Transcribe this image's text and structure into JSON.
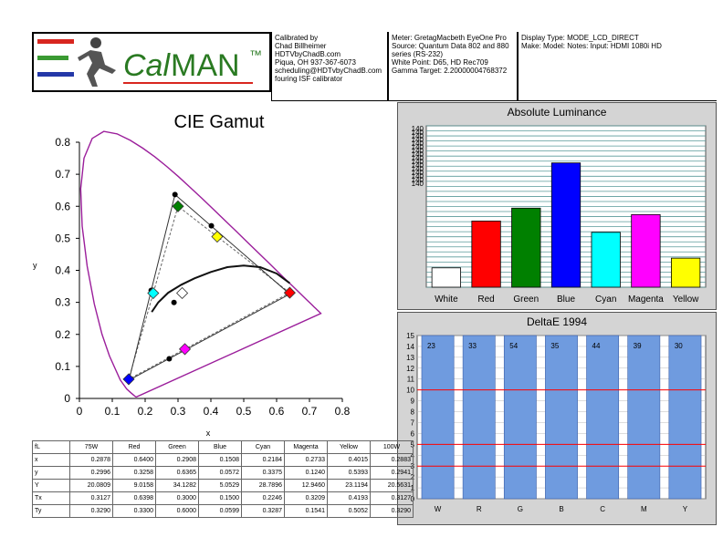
{
  "header": {
    "logo_text_cal": "Cal",
    "logo_text_man": "MAN",
    "logo_tm": "™",
    "calibrated_by": "Calibrated by\nChad Billheimer\nHDTVbyChadB.com\nPiqua, OH 937-367-6073\nscheduling@HDTvbyChadB.com\nfouring ISF calibrator",
    "meter_info": "Meter: GretagMacbeth EyeOne Pro\nSource: Quantum Data 802 and 880\nseries (RS-232)\nWhite Point: D65, HD Rec709\nGamma Target: 2.20000004768372",
    "display_info": "Display Type: MODE_LCD_DIRECT\nMake: Model: Notes: Input: HDMI 1080i HD",
    "colors": {
      "logo_red": "#d8261f",
      "logo_green": "#3a9a32",
      "logo_blue": "#2438a8",
      "logo_text": "#2a7a22"
    }
  },
  "chart_data": [
    {
      "type": "scatter",
      "title": "CIE Gamut",
      "xlabel": "x",
      "ylabel": "y",
      "xlim": [
        0,
        0.8
      ],
      "ylim": [
        0,
        0.8
      ],
      "xticks": [
        "0",
        "0.1",
        "0.2",
        "0.3",
        "0.4",
        "0.5",
        "0.6",
        "0.7",
        "0.8"
      ],
      "yticks": [
        "0",
        "0.1",
        "0.2",
        "0.3",
        "0.4",
        "0.5",
        "0.6",
        "0.7",
        "0.8"
      ],
      "target_points": [
        {
          "name": "R",
          "x": 0.64,
          "y": 0.33,
          "color": "#ff0000"
        },
        {
          "name": "G",
          "x": 0.3,
          "y": 0.6,
          "color": "#008000"
        },
        {
          "name": "B",
          "x": 0.15,
          "y": 0.06,
          "color": "#0000ff"
        },
        {
          "name": "C",
          "x": 0.2246,
          "y": 0.3287,
          "color": "#00ffff"
        },
        {
          "name": "M",
          "x": 0.3209,
          "y": 0.1541,
          "color": "#ff00ff"
        },
        {
          "name": "Y",
          "x": 0.4193,
          "y": 0.5052,
          "color": "#ffff00"
        },
        {
          "name": "W",
          "x": 0.3127,
          "y": 0.329,
          "color": "#ffffff"
        }
      ],
      "measured_points": [
        {
          "name": "R",
          "x": 0.64,
          "y": 0.3258
        },
        {
          "name": "G",
          "x": 0.2908,
          "y": 0.6365
        },
        {
          "name": "B",
          "x": 0.1508,
          "y": 0.0572
        },
        {
          "name": "C",
          "x": 0.2184,
          "y": 0.3375
        },
        {
          "name": "M",
          "x": 0.2733,
          "y": 0.124
        },
        {
          "name": "Y",
          "x": 0.4015,
          "y": 0.5393
        },
        {
          "name": "W",
          "x": 0.2878,
          "y": 0.2996
        }
      ],
      "colors": {
        "locus": "#9b1e9b",
        "triangle": "#555555",
        "curve": "#000000"
      }
    },
    {
      "type": "bar",
      "title": "Absolute Luminance",
      "categories": [
        "White",
        "Red",
        "Green",
        "Blue",
        "Cyan",
        "Magenta",
        "Yellow"
      ],
      "values": [
        0.12,
        0.41,
        0.49,
        0.77,
        0.34,
        0.45,
        0.18
      ],
      "value_note": "fraction of plot height",
      "colors": [
        "#ffffff",
        "#ff0000",
        "#008000",
        "#0000ff",
        "#00ffff",
        "#ff00ff",
        "#ffff00"
      ],
      "ytick_label": "140"
    },
    {
      "type": "bar",
      "title": "DeltaE 1994",
      "categories": [
        "W",
        "R",
        "G",
        "B",
        "C",
        "M",
        "Y"
      ],
      "values": [
        15,
        15,
        15,
        15,
        15,
        15,
        15
      ],
      "data_labels": [
        "23",
        "33",
        "54",
        "35",
        "44",
        "39",
        "30"
      ],
      "ylim": [
        0,
        15
      ],
      "yticks": [
        "0",
        "1",
        "2",
        "3",
        "4",
        "5",
        "6",
        "7",
        "8",
        "9",
        "10",
        "11",
        "12",
        "13",
        "14",
        "15"
      ],
      "threshold_lines": [
        3,
        5,
        10
      ],
      "colors": {
        "bar": "#6f9bdf",
        "threshold": "#ff0000"
      }
    }
  ],
  "table": {
    "header": [
      "fL",
      "75W",
      "Red",
      "Green",
      "Blue",
      "Cyan",
      "Magenta",
      "Yellow",
      "100W"
    ],
    "rows": [
      [
        "x",
        "0.2878",
        "0.6400",
        "0.2908",
        "0.1508",
        "0.2184",
        "0.2733",
        "0.4015",
        "0.2883"
      ],
      [
        "y",
        "0.2996",
        "0.3258",
        "0.6365",
        "0.0572",
        "0.3375",
        "0.1240",
        "0.5393",
        "0.2941"
      ],
      [
        "Y",
        "20.0809",
        "9.0158",
        "34.1282",
        "5.0529",
        "28.7896",
        "12.9460",
        "23.1194",
        "20.5631"
      ],
      [
        "Tx",
        "0.3127",
        "0.6398",
        "0.3000",
        "0.1500",
        "0.2246",
        "0.3209",
        "0.4193",
        "0.3127"
      ],
      [
        "Ty",
        "0.3290",
        "0.3300",
        "0.6000",
        "0.0599",
        "0.3287",
        "0.1541",
        "0.5052",
        "0.3290"
      ]
    ]
  }
}
